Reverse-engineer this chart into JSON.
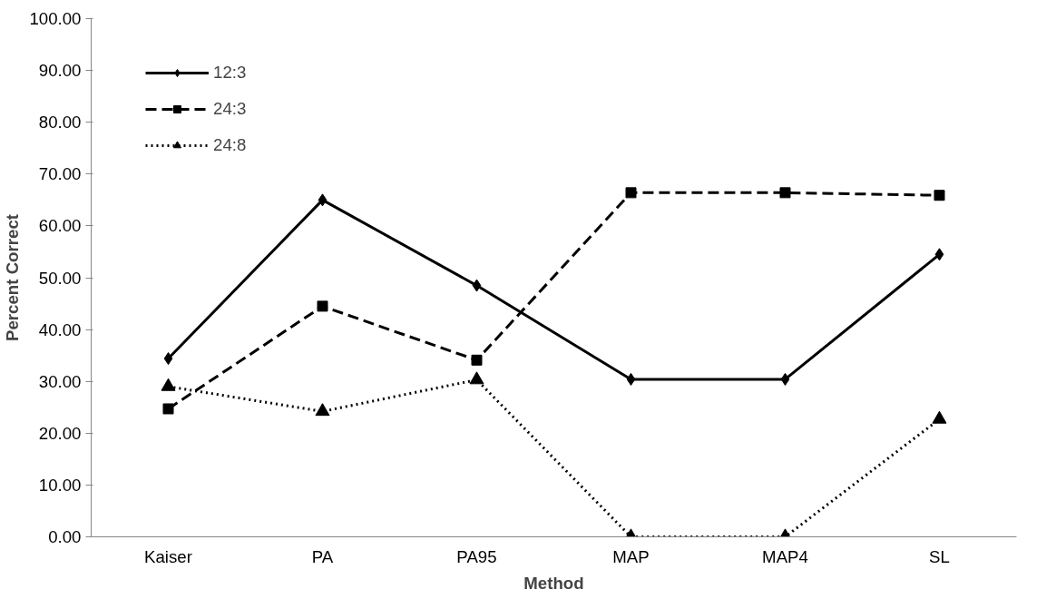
{
  "chart_data": {
    "type": "line",
    "xlabel": "Method",
    "ylabel": "Percent Correct",
    "categories": [
      "Kaiser",
      "PA",
      "PA95",
      "MAP",
      "MAP4",
      "SL"
    ],
    "series": [
      {
        "name": "12:3",
        "color": "#000000",
        "marker": "diamond",
        "line_style": "solid",
        "values": [
          34.4,
          65.0,
          48.5,
          30.4,
          30.4,
          54.5
        ]
      },
      {
        "name": "24:3",
        "color": "#000000",
        "marker": "square",
        "line_style": "dashed",
        "values": [
          24.7,
          44.5,
          34.1,
          66.4,
          66.4,
          65.9
        ]
      },
      {
        "name": "24:8",
        "color": "#000000",
        "marker": "triangle",
        "line_style": "dotted",
        "values": [
          29.0,
          24.2,
          30.3,
          0,
          0,
          22.7
        ]
      }
    ],
    "ylim": [
      0,
      100
    ],
    "yticks": [
      {
        "value": 0,
        "label": "0.00"
      },
      {
        "value": 10,
        "label": "10.00"
      },
      {
        "value": 20,
        "label": "20.00"
      },
      {
        "value": 30,
        "label": "30.00"
      },
      {
        "value": 40,
        "label": "40.00"
      },
      {
        "value": 50,
        "label": "50.00"
      },
      {
        "value": 60,
        "label": "60.00"
      },
      {
        "value": 70,
        "label": "70.00"
      },
      {
        "value": 80,
        "label": "80.00"
      },
      {
        "value": 90,
        "label": "90.00"
      },
      {
        "value": 100,
        "label": "100.00"
      }
    ],
    "grid": false,
    "legend": "top left"
  }
}
